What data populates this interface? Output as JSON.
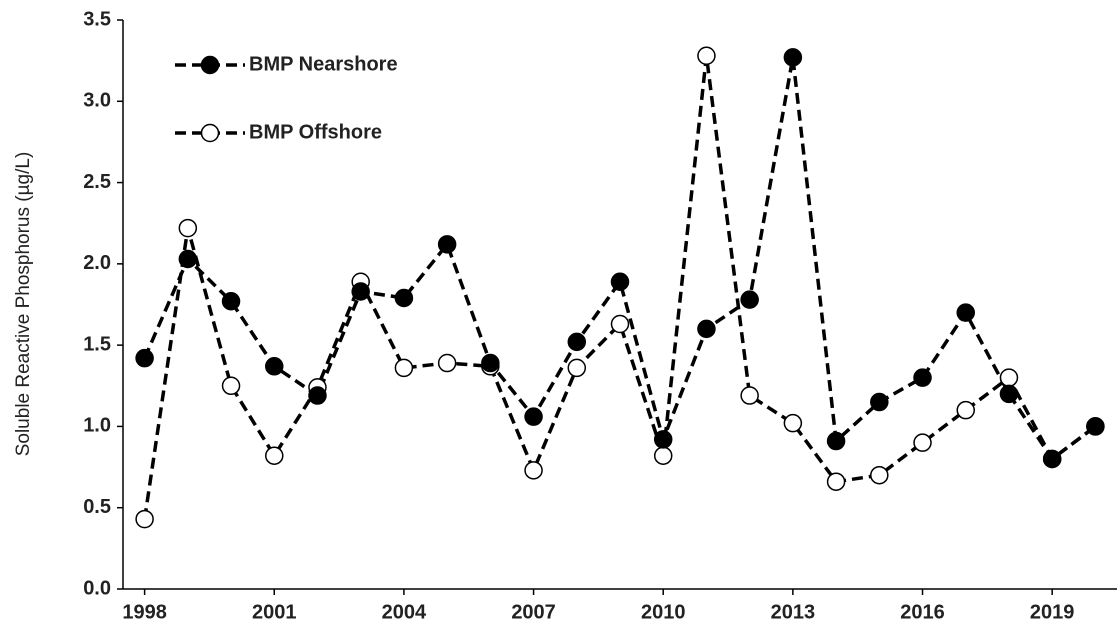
{
  "chart_data": {
    "type": "line",
    "y_label": "Soluble Reactive Phosphorus  (µg/L)",
    "x": [
      1998,
      1999,
      2000,
      2001,
      2002,
      2003,
      2004,
      2005,
      2006,
      2007,
      2008,
      2009,
      2010,
      2011,
      2012,
      2013,
      2014,
      2015,
      2016,
      2017,
      2018,
      2019,
      2020
    ],
    "series": [
      {
        "name": "BMP Nearshore",
        "color": "#000000",
        "marker": "filled",
        "values": [
          1.42,
          2.03,
          1.77,
          1.37,
          1.19,
          1.83,
          1.79,
          2.12,
          1.39,
          1.06,
          1.52,
          1.89,
          0.92,
          1.6,
          1.78,
          3.27,
          0.91,
          1.15,
          1.3,
          1.7,
          1.2,
          0.8,
          1.0
        ]
      },
      {
        "name": "BMP Offshore",
        "color": "#000000",
        "marker": "open",
        "values": [
          0.43,
          2.22,
          1.25,
          0.82,
          1.24,
          1.89,
          1.36,
          1.39,
          1.37,
          0.73,
          1.36,
          1.63,
          0.82,
          3.28,
          1.19,
          1.02,
          0.66,
          0.7,
          0.9,
          1.1,
          1.3,
          0.8,
          1.0
        ]
      }
    ],
    "xlim": [
      1997.5,
      2020.5
    ],
    "xticks": [
      1998,
      2001,
      2004,
      2007,
      2010,
      2013,
      2016,
      2019
    ],
    "ylim": [
      0,
      3.5
    ],
    "yticks": [
      {
        "value": 0,
        "label": "0.0"
      },
      0.5,
      {
        "value": 1,
        "label": "1.0"
      },
      1.5,
      {
        "value": 2,
        "label": "2.0"
      },
      2.5,
      {
        "value": 3,
        "label": "3.0"
      },
      3.5
    ],
    "legend": "upper-left"
  }
}
